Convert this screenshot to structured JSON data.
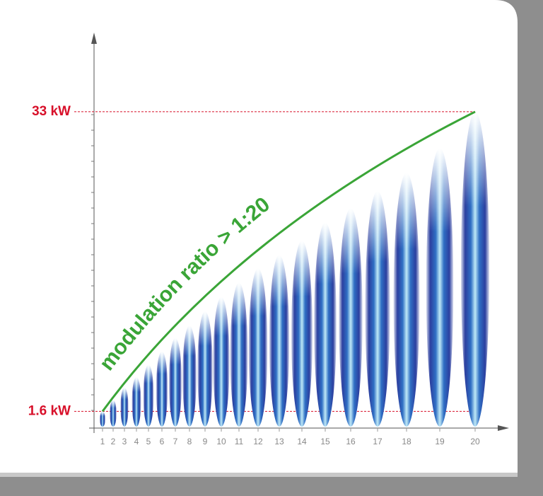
{
  "chart_data": {
    "type": "flame",
    "categories": [
      "1",
      "2",
      "3",
      "4",
      "5",
      "6",
      "7",
      "8",
      "9",
      "10",
      "11",
      "12",
      "13",
      "14",
      "15",
      "16",
      "17",
      "18",
      "19",
      "20"
    ],
    "values": [
      1.6,
      2.8,
      4.1,
      5.2,
      6.5,
      7.9,
      9.3,
      10.6,
      12.1,
      13.6,
      15.1,
      16.6,
      18.0,
      19.5,
      21.4,
      22.9,
      24.7,
      26.6,
      29.2,
      33
    ],
    "ylim": [
      0,
      41
    ],
    "yticks": [
      {
        "value": 1.6,
        "label": "1.6 kW"
      },
      {
        "value": 33,
        "label": "33 kW"
      }
    ],
    "annotation": "modulation ratio > 1:20",
    "color": "#2b3f9f",
    "curve_color": "#3aa537",
    "label_color": "#d8102a"
  }
}
